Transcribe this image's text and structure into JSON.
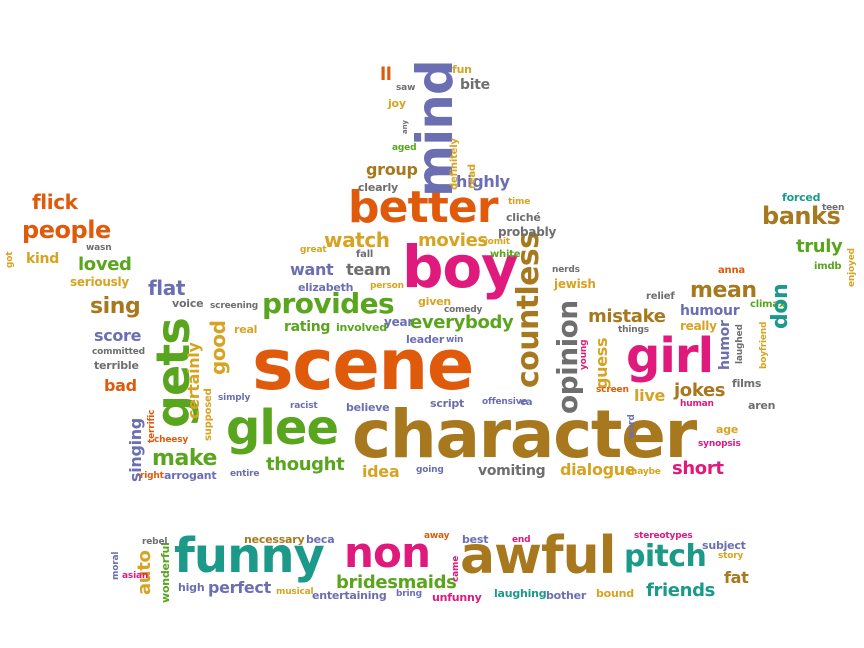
{
  "colors": {
    "orange": "#e05a0c",
    "magenta": "#e0197d",
    "brown": "#a7781d",
    "green": "#5aa51e",
    "teal": "#1b9a8a",
    "purple": "#6b6fb1",
    "gold": "#d6a422",
    "gray": "#6e6e6e",
    "red": "#d9372b"
  },
  "words": [
    "scene",
    "character",
    "boy",
    "girl",
    "glee",
    "better",
    "mind",
    "gets",
    "funny",
    "non",
    "awful",
    "countless",
    "opinion",
    "provides",
    "make",
    "pitch",
    "mean",
    "thought",
    "bridesmaids",
    "flick",
    "people",
    "loved",
    "sing",
    "flat",
    "watch",
    "movies",
    "want",
    "team",
    "fall",
    "great",
    "rating",
    "involved",
    "year",
    "everybody",
    "leader",
    "win",
    "given",
    "good",
    "certainly",
    "real",
    "voice",
    "screening",
    "score",
    "committed",
    "terrible",
    "bad",
    "simply",
    "supposed",
    "racist",
    "believe",
    "script",
    "offensive",
    "ca",
    "singing",
    "terrific",
    "cheesy",
    "right",
    "arrogant",
    "entire",
    "idea",
    "going",
    "vomiting",
    "dialogue",
    "maybe",
    "short",
    "jokes",
    "live",
    "mistake",
    "guess",
    "young",
    "screen",
    "word",
    "things",
    "relief",
    "humour",
    "really",
    "humor",
    "laughed",
    "boyfriend",
    "films",
    "climax",
    "human",
    "aren",
    "age",
    "synopsis",
    "banks",
    "truly",
    "don",
    "imdb",
    "anna",
    "forced",
    "teen",
    "enjoyed",
    "got",
    "kind",
    "wasn",
    "seriously",
    "group",
    "clearly",
    "highly",
    "aged",
    "read",
    "definitely",
    "ll",
    "saw",
    "joy",
    "any",
    "fun",
    "bite",
    "time",
    "cliché",
    "probably",
    "vomit",
    "white",
    "jewish",
    "nerds",
    "person",
    "elizabeth",
    "comedy",
    "auto",
    "wonderful",
    "moral",
    "asian",
    "rebel",
    "high",
    "perfect",
    "necessary",
    "beca",
    "musical",
    "entertaining",
    "bring",
    "away",
    "came",
    "best",
    "unfunny",
    "laughing",
    "end",
    "bother",
    "bound",
    "stereotypes",
    "subject",
    "story",
    "fat",
    "friends"
  ]
}
